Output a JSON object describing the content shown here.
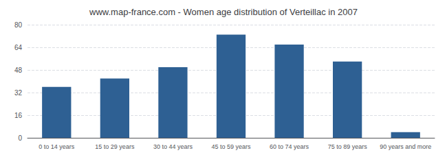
{
  "chart_data": {
    "type": "bar",
    "title": "www.map-france.com - Women age distribution of Verteillac in 2007",
    "categories": [
      "0 to 14 years",
      "15 to 29 years",
      "30 to 44 years",
      "45 to 59 years",
      "60 to 74 years",
      "75 to 89 years",
      "90 years and more"
    ],
    "values": [
      36,
      42,
      50,
      73,
      66,
      54,
      4
    ],
    "color": "#2e6093",
    "ylim": [
      0,
      80
    ],
    "yticks": [
      0,
      16,
      32,
      48,
      64,
      80
    ],
    "grid": true
  }
}
